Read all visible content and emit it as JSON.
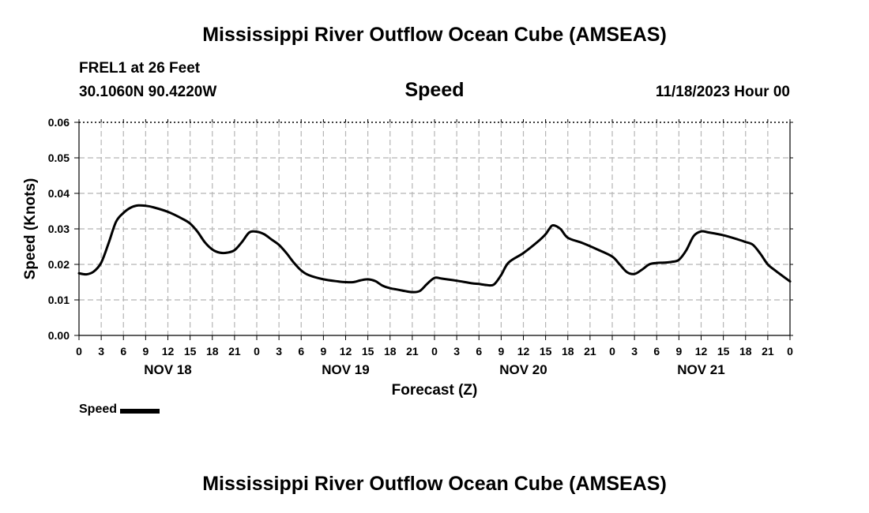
{
  "page": {
    "title": "Mississippi River Outflow Ocean Cube (AMSEAS)",
    "title_repeat": "Mississippi River Outflow Ocean Cube (AMSEAS)",
    "station": "FREL1 at 26 Feet",
    "coordinates": "30.1060N  90.4220W",
    "panel_title": "Speed",
    "run_time": "11/18/2023 Hour 00"
  },
  "legend": {
    "label": "Speed",
    "color": "#000000"
  },
  "chart_data": {
    "type": "line",
    "title": "Speed",
    "xlabel": "Forecast (Z)",
    "ylabel": "Speed (Knots)",
    "xlim": [
      0,
      96
    ],
    "ylim": [
      0,
      0.06
    ],
    "grid": true,
    "y_ticks": [
      "0.00",
      "0.01",
      "0.02",
      "0.03",
      "0.04",
      "0.05",
      "0.06"
    ],
    "x_ticks": [
      {
        "h": 0,
        "label": "0"
      },
      {
        "h": 3,
        "label": "3"
      },
      {
        "h": 6,
        "label": "6"
      },
      {
        "h": 9,
        "label": "9"
      },
      {
        "h": 12,
        "label": "12"
      },
      {
        "h": 15,
        "label": "15"
      },
      {
        "h": 18,
        "label": "18"
      },
      {
        "h": 21,
        "label": "21"
      },
      {
        "h": 24,
        "label": "0"
      },
      {
        "h": 27,
        "label": "3"
      },
      {
        "h": 30,
        "label": "6"
      },
      {
        "h": 33,
        "label": "9"
      },
      {
        "h": 36,
        "label": "12"
      },
      {
        "h": 39,
        "label": "15"
      },
      {
        "h": 42,
        "label": "18"
      },
      {
        "h": 45,
        "label": "21"
      },
      {
        "h": 48,
        "label": "0"
      },
      {
        "h": 51,
        "label": "3"
      },
      {
        "h": 54,
        "label": "6"
      },
      {
        "h": 57,
        "label": "9"
      },
      {
        "h": 60,
        "label": "12"
      },
      {
        "h": 63,
        "label": "15"
      },
      {
        "h": 66,
        "label": "18"
      },
      {
        "h": 69,
        "label": "21"
      },
      {
        "h": 72,
        "label": "0"
      },
      {
        "h": 75,
        "label": "3"
      },
      {
        "h": 78,
        "label": "6"
      },
      {
        "h": 81,
        "label": "9"
      },
      {
        "h": 84,
        "label": "12"
      },
      {
        "h": 87,
        "label": "15"
      },
      {
        "h": 90,
        "label": "18"
      },
      {
        "h": 93,
        "label": "21"
      },
      {
        "h": 96,
        "label": "0"
      }
    ],
    "day_labels": [
      {
        "h": 12,
        "label": "NOV 18"
      },
      {
        "h": 36,
        "label": "NOV 19"
      },
      {
        "h": 60,
        "label": "NOV 20"
      },
      {
        "h": 84,
        "label": "NOV 21"
      }
    ],
    "series": [
      {
        "name": "Speed",
        "color": "#000000",
        "x": [
          0,
          1,
          2,
          3,
          4,
          5,
          6,
          7,
          8,
          9,
          10,
          12,
          14,
          15,
          16,
          17,
          18,
          19,
          20,
          21,
          22,
          23,
          24,
          25,
          26,
          27,
          28,
          29,
          30,
          31,
          33,
          35,
          36,
          37,
          38,
          39,
          40,
          41,
          42,
          43,
          44,
          45,
          46,
          47,
          48,
          49,
          51,
          53,
          54,
          55,
          56,
          57,
          58,
          60,
          62,
          63,
          63.5,
          64,
          65,
          66,
          68,
          70,
          72,
          73,
          74,
          75,
          76,
          77,
          78,
          79,
          80,
          81,
          82,
          83,
          84,
          85,
          87,
          89,
          90,
          91,
          92,
          93,
          94,
          96
        ],
        "y": [
          0.0175,
          0.0172,
          0.018,
          0.0205,
          0.026,
          0.032,
          0.0345,
          0.036,
          0.0366,
          0.0365,
          0.0361,
          0.0348,
          0.0328,
          0.0315,
          0.0292,
          0.0262,
          0.0242,
          0.0233,
          0.0233,
          0.024,
          0.0263,
          0.029,
          0.0292,
          0.0285,
          0.027,
          0.0255,
          0.0232,
          0.0205,
          0.0183,
          0.017,
          0.0158,
          0.0152,
          0.015,
          0.015,
          0.0155,
          0.0158,
          0.0153,
          0.014,
          0.0133,
          0.0129,
          0.0125,
          0.0122,
          0.0125,
          0.0145,
          0.0162,
          0.016,
          0.0154,
          0.0147,
          0.0145,
          0.0142,
          0.0143,
          0.017,
          0.0205,
          0.0232,
          0.0265,
          0.0285,
          0.03,
          0.031,
          0.03,
          0.0275,
          0.026,
          0.0242,
          0.0222,
          0.02,
          0.0178,
          0.0173,
          0.0185,
          0.02,
          0.0204,
          0.0205,
          0.0207,
          0.0213,
          0.024,
          0.028,
          0.0293,
          0.029,
          0.0282,
          0.027,
          0.0263,
          0.0255,
          0.023,
          0.02,
          0.0183,
          0.0152
        ]
      }
    ]
  }
}
